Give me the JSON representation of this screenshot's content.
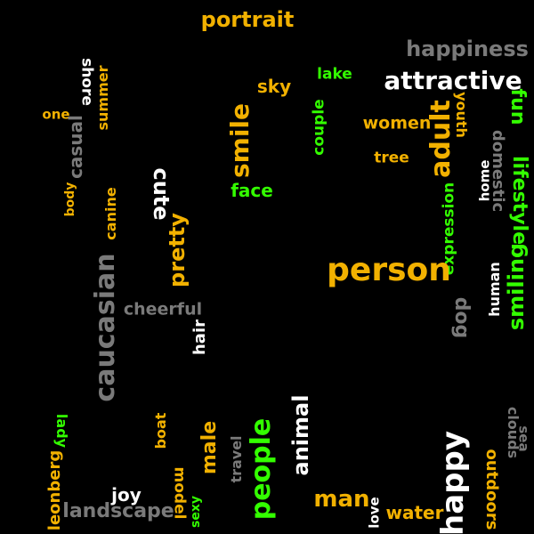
{
  "colors": {
    "background": "#000000",
    "orange": "#f2b100",
    "white": "#ffffff",
    "gray": "#7a7a7a",
    "green": "#33ff00"
  },
  "words": [
    {
      "text": "portrait",
      "color": "orange",
      "rotation": 0
    },
    {
      "text": "happiness",
      "color": "gray",
      "rotation": 0
    },
    {
      "text": "attractive",
      "color": "white",
      "rotation": 0
    },
    {
      "text": "shore",
      "color": "white",
      "rotation": 90
    },
    {
      "text": "summer",
      "color": "orange",
      "rotation": -90
    },
    {
      "text": "sky",
      "color": "orange",
      "rotation": 0
    },
    {
      "text": "lake",
      "color": "green",
      "rotation": 0
    },
    {
      "text": "youth",
      "color": "orange",
      "rotation": 90
    },
    {
      "text": "fun",
      "color": "green",
      "rotation": 90
    },
    {
      "text": "one",
      "color": "orange",
      "rotation": 0
    },
    {
      "text": "casual",
      "color": "gray",
      "rotation": -90
    },
    {
      "text": "smile",
      "color": "orange",
      "rotation": -90
    },
    {
      "text": "couple",
      "color": "green",
      "rotation": -90
    },
    {
      "text": "women",
      "color": "orange",
      "rotation": 0
    },
    {
      "text": "adult",
      "color": "orange",
      "rotation": -90
    },
    {
      "text": "domestic",
      "color": "gray",
      "rotation": 90
    },
    {
      "text": "lifestyle",
      "color": "green",
      "rotation": 90
    },
    {
      "text": "tree",
      "color": "orange",
      "rotation": 0
    },
    {
      "text": "body",
      "color": "orange",
      "rotation": -90
    },
    {
      "text": "canine",
      "color": "orange",
      "rotation": -90
    },
    {
      "text": "cute",
      "color": "white",
      "rotation": 90
    },
    {
      "text": "face",
      "color": "green",
      "rotation": 0
    },
    {
      "text": "home",
      "color": "white",
      "rotation": -90
    },
    {
      "text": "expression",
      "color": "green",
      "rotation": -90
    },
    {
      "text": "pretty",
      "color": "orange",
      "rotation": -90
    },
    {
      "text": "caucasian",
      "color": "gray",
      "rotation": -90
    },
    {
      "text": "person",
      "color": "orange",
      "rotation": 0
    },
    {
      "text": "smiling",
      "color": "green",
      "rotation": -90
    },
    {
      "text": "human",
      "color": "white",
      "rotation": -90
    },
    {
      "text": "cheerful",
      "color": "gray",
      "rotation": 0
    },
    {
      "text": "dog",
      "color": "gray",
      "rotation": 90
    },
    {
      "text": "hair",
      "color": "white",
      "rotation": -90
    },
    {
      "text": "lady",
      "color": "green",
      "rotation": 90
    },
    {
      "text": "clouds",
      "color": "gray",
      "rotation": 90
    },
    {
      "text": "sea",
      "color": "gray",
      "rotation": 90
    },
    {
      "text": "boat",
      "color": "orange",
      "rotation": -90
    },
    {
      "text": "animal",
      "color": "white",
      "rotation": -90
    },
    {
      "text": "male",
      "color": "orange",
      "rotation": -90
    },
    {
      "text": "travel",
      "color": "gray",
      "rotation": -90
    },
    {
      "text": "people",
      "color": "green",
      "rotation": -90
    },
    {
      "text": "happy",
      "color": "white",
      "rotation": -90
    },
    {
      "text": "outdoors",
      "color": "orange",
      "rotation": 90
    },
    {
      "text": "leonberg",
      "color": "orange",
      "rotation": -90
    },
    {
      "text": "joy",
      "color": "white",
      "rotation": 0
    },
    {
      "text": "model",
      "color": "orange",
      "rotation": 90
    },
    {
      "text": "man",
      "color": "orange",
      "rotation": 0
    },
    {
      "text": "love",
      "color": "white",
      "rotation": -90
    },
    {
      "text": "landscape",
      "color": "gray",
      "rotation": 0
    },
    {
      "text": "sexy",
      "color": "green",
      "rotation": -90
    },
    {
      "text": "water",
      "color": "orange",
      "rotation": 0
    }
  ]
}
